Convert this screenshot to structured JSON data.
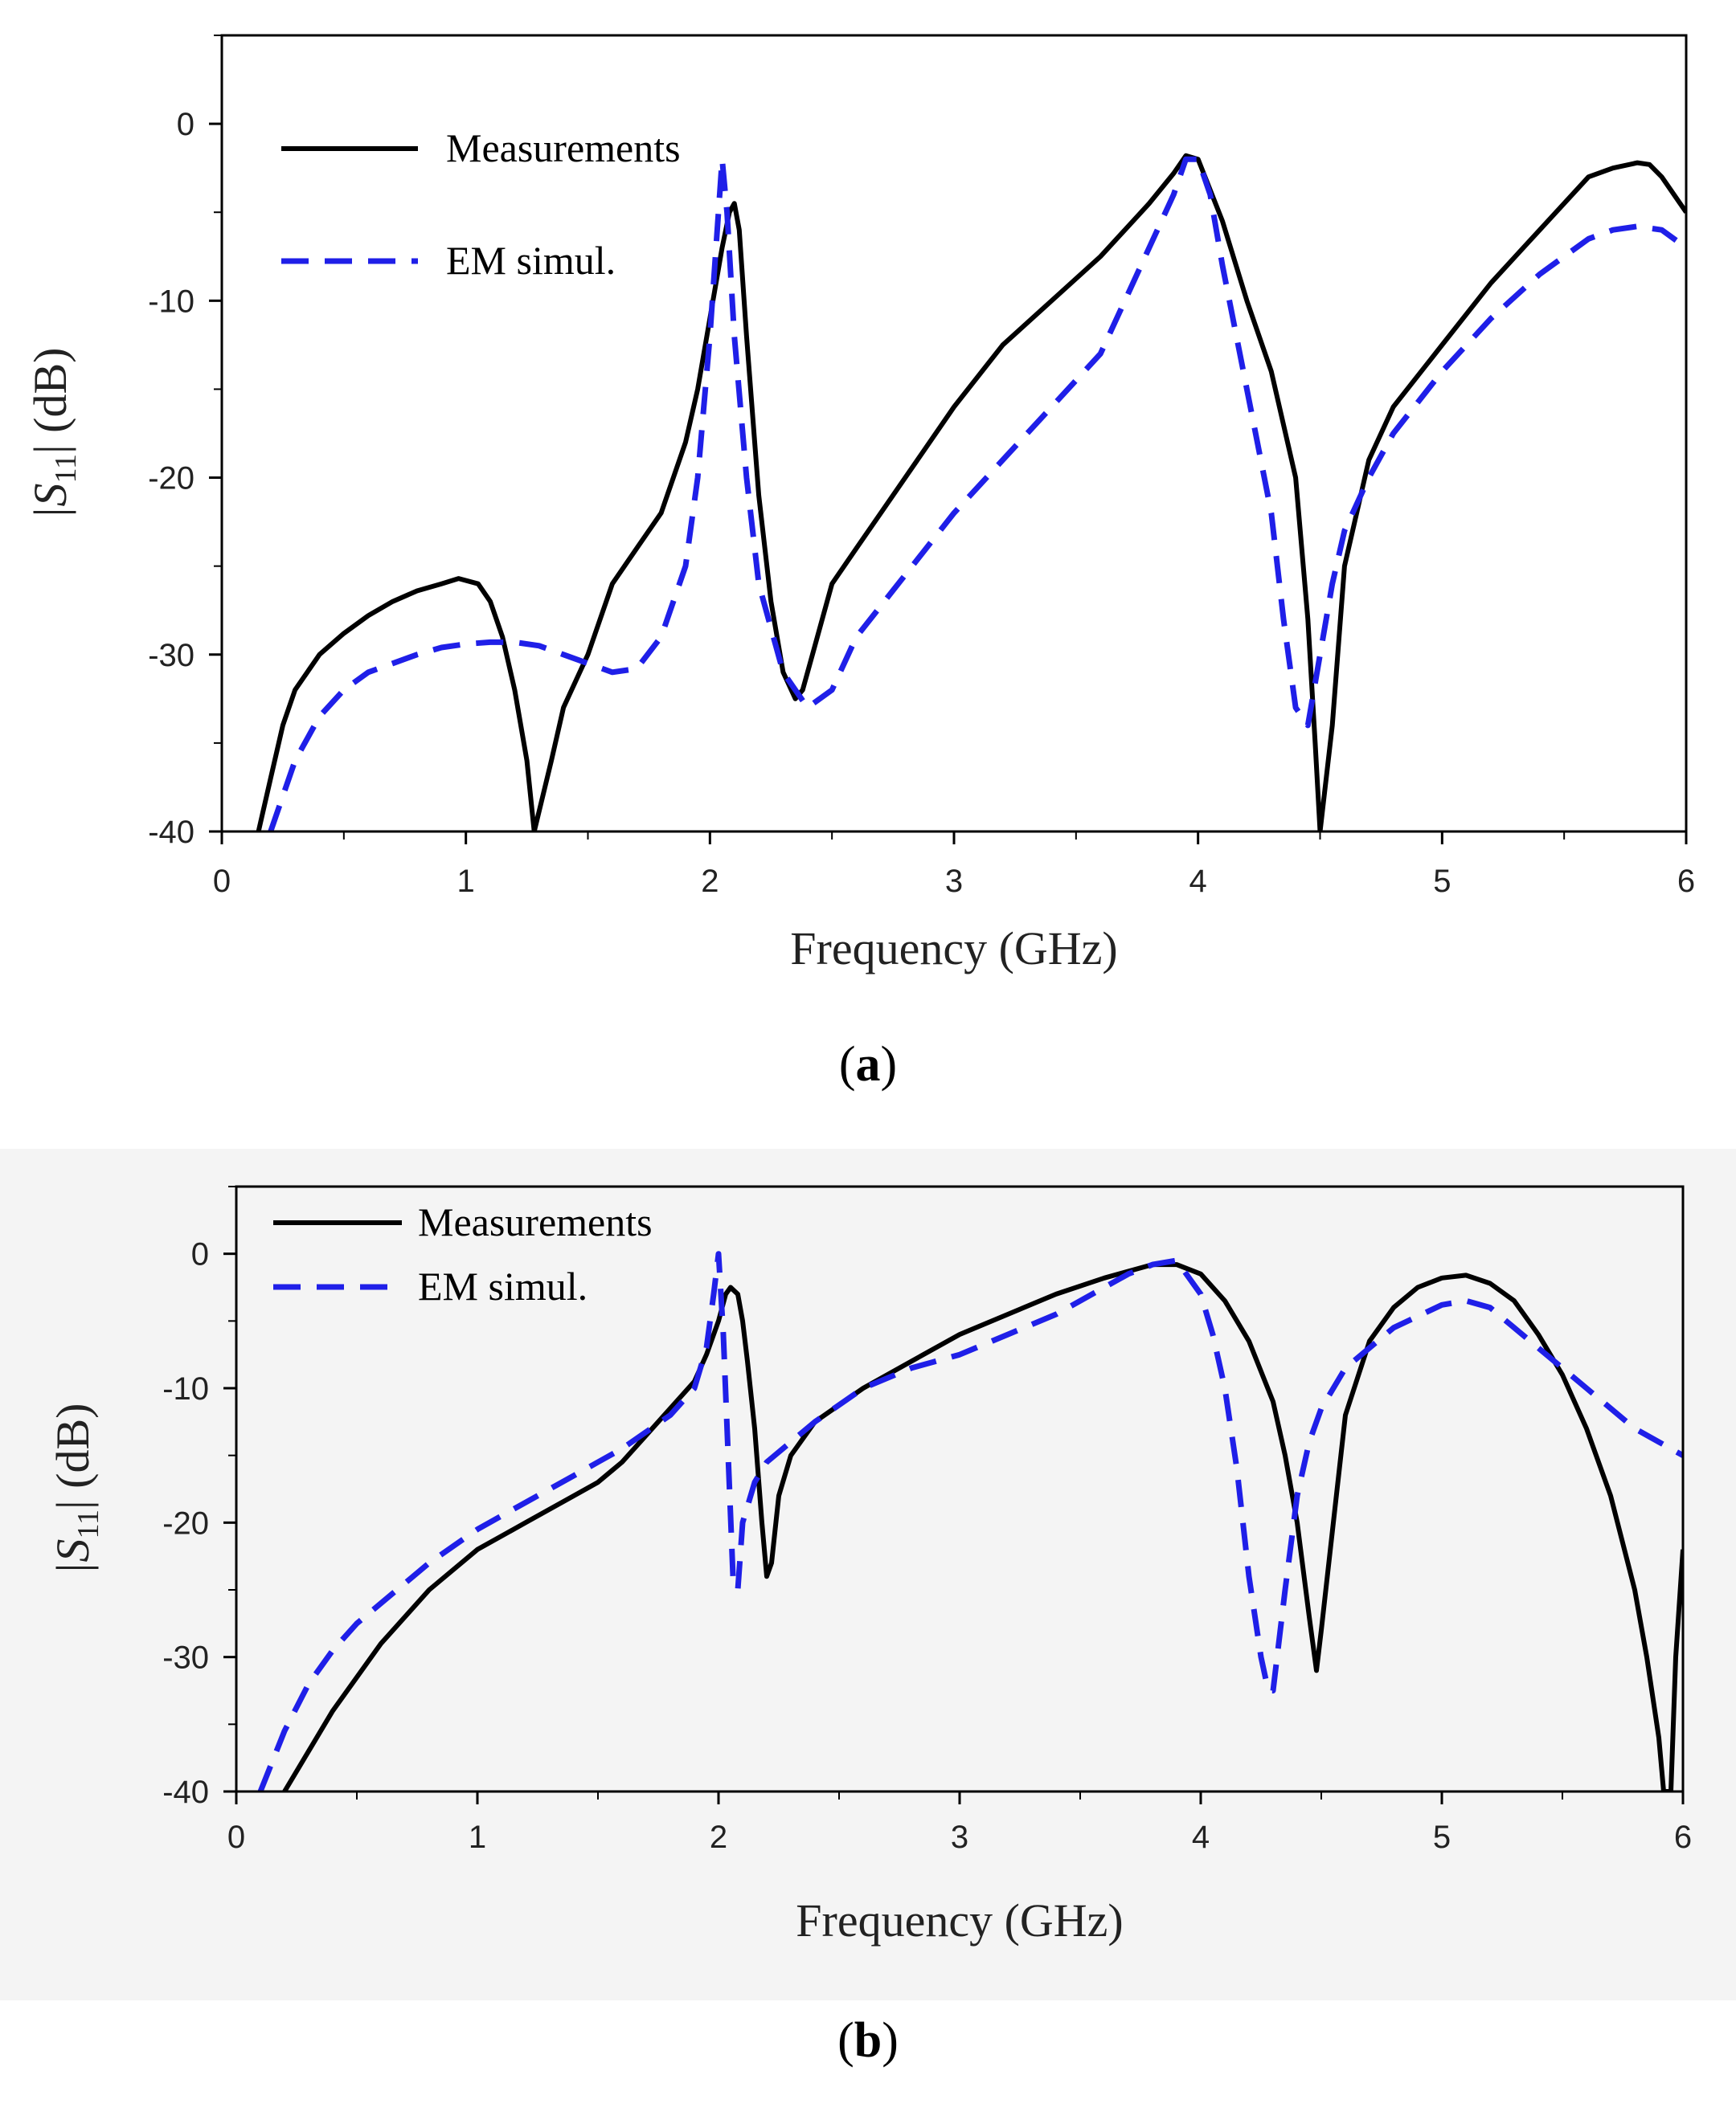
{
  "chart_data": [
    {
      "panel": "a",
      "type": "line",
      "caption_label": "a",
      "xlabel": "Frequency  (GHz)",
      "ylabel_main": "|S",
      "ylabel_sub": "11",
      "ylabel_end": "| (dB)",
      "xlim": [
        0,
        6
      ],
      "ylim": [
        -40,
        5
      ],
      "xticks": [
        0,
        1,
        2,
        3,
        4,
        5,
        6
      ],
      "xtick_labels": [
        "0",
        "1",
        "2",
        "3",
        "4",
        "5",
        "6"
      ],
      "yticks": [
        -40,
        -30,
        -20,
        -10,
        0
      ],
      "ytick_labels": [
        "-40",
        "-30",
        "-20",
        "-10",
        "0"
      ],
      "grid": false,
      "legend_position": "top-left",
      "series": [
        {
          "name": "Measurements",
          "color": "#000000",
          "dash": "solid",
          "x": [
            0.15,
            0.2,
            0.25,
            0.3,
            0.4,
            0.5,
            0.6,
            0.7,
            0.8,
            0.9,
            0.97,
            1.05,
            1.1,
            1.15,
            1.2,
            1.25,
            1.28,
            1.35,
            1.4,
            1.5,
            1.6,
            1.7,
            1.8,
            1.9,
            1.95,
            2.0,
            2.05,
            2.08,
            2.1,
            2.12,
            2.15,
            2.2,
            2.25,
            2.3,
            2.35,
            2.38,
            2.42,
            2.5,
            2.6,
            2.8,
            3.0,
            3.2,
            3.4,
            3.6,
            3.8,
            3.9,
            3.95,
            4.0,
            4.1,
            4.2,
            4.3,
            4.4,
            4.45,
            4.48,
            4.5,
            4.55,
            4.6,
            4.7,
            4.8,
            5.0,
            5.2,
            5.4,
            5.6,
            5.7,
            5.8,
            5.85,
            5.9,
            6.0
          ],
          "y": [
            -40,
            -37,
            -34,
            -32,
            -30,
            -28.8,
            -27.8,
            -27,
            -26.4,
            -26,
            -25.7,
            -26,
            -27,
            -29,
            -32,
            -36,
            -40,
            -36,
            -33,
            -30,
            -26,
            -24,
            -22,
            -18,
            -15,
            -11,
            -7,
            -5,
            -4.5,
            -6,
            -12,
            -21,
            -27,
            -31,
            -32.5,
            -32,
            -30,
            -26,
            -24,
            -20,
            -16,
            -12.5,
            -10,
            -7.5,
            -4.5,
            -2.8,
            -1.8,
            -2,
            -5.5,
            -10,
            -14,
            -20,
            -28,
            -35,
            -40,
            -34,
            -25,
            -19,
            -16,
            -12.5,
            -9,
            -6,
            -3,
            -2.5,
            -2.2,
            -2.3,
            -3,
            -5
          ]
        },
        {
          "name": "EM simul.",
          "color": "#1f1fe8",
          "dash": "dashed",
          "x": [
            0.2,
            0.3,
            0.4,
            0.5,
            0.6,
            0.7,
            0.8,
            0.9,
            1.0,
            1.1,
            1.2,
            1.3,
            1.4,
            1.5,
            1.6,
            1.7,
            1.8,
            1.9,
            1.95,
            2.0,
            2.03,
            2.05,
            2.07,
            2.1,
            2.15,
            2.2,
            2.3,
            2.4,
            2.45,
            2.5,
            2.6,
            2.8,
            3.0,
            3.2,
            3.4,
            3.6,
            3.7,
            3.8,
            3.9,
            3.95,
            4.0,
            4.05,
            4.1,
            4.2,
            4.3,
            4.35,
            4.4,
            4.45,
            4.5,
            4.55,
            4.6,
            4.7,
            4.8,
            5.0,
            5.2,
            5.4,
            5.6,
            5.7,
            5.8,
            5.9,
            6.0
          ],
          "y": [
            -40,
            -36,
            -33.5,
            -32,
            -31,
            -30.5,
            -30,
            -29.6,
            -29.4,
            -29.3,
            -29.3,
            -29.5,
            -30,
            -30.5,
            -31,
            -30.8,
            -29,
            -25,
            -20,
            -12,
            -6,
            -2,
            -5,
            -12,
            -20,
            -26,
            -31,
            -33,
            -32.5,
            -32,
            -29,
            -25.5,
            -22,
            -19,
            -16,
            -13,
            -10,
            -7,
            -4,
            -2,
            -2,
            -4,
            -8,
            -15,
            -22,
            -28,
            -33,
            -34,
            -30,
            -26,
            -23,
            -20,
            -17.5,
            -14,
            -11,
            -8.5,
            -6.5,
            -6,
            -5.8,
            -6,
            -7
          ]
        }
      ]
    },
    {
      "panel": "b",
      "type": "line",
      "caption_label": "b",
      "xlabel": "Frequency  (GHz)",
      "ylabel_main": "|S",
      "ylabel_sub": "11",
      "ylabel_end": "| (dB)",
      "xlim": [
        0,
        6
      ],
      "ylim": [
        -40,
        5
      ],
      "xticks": [
        0,
        1,
        2,
        3,
        4,
        5,
        6
      ],
      "xtick_labels": [
        "0",
        "1",
        "2",
        "3",
        "4",
        "5",
        "6"
      ],
      "yticks": [
        -40,
        -30,
        -20,
        -10,
        0
      ],
      "ytick_labels": [
        "-40",
        "-30",
        "-20",
        "-10",
        "0"
      ],
      "grid": false,
      "legend_position": "top-left",
      "series": [
        {
          "name": "Measurements",
          "color": "#000000",
          "dash": "solid",
          "x": [
            0.2,
            0.3,
            0.4,
            0.5,
            0.6,
            0.8,
            1.0,
            1.2,
            1.4,
            1.5,
            1.6,
            1.7,
            1.8,
            1.9,
            1.95,
            2.0,
            2.03,
            2.05,
            2.08,
            2.1,
            2.12,
            2.15,
            2.18,
            2.2,
            2.22,
            2.25,
            2.3,
            2.4,
            2.6,
            2.8,
            3.0,
            3.2,
            3.4,
            3.6,
            3.8,
            3.9,
            4.0,
            4.1,
            4.2,
            4.3,
            4.35,
            4.4,
            4.45,
            4.48,
            4.5,
            4.55,
            4.6,
            4.7,
            4.8,
            4.9,
            5.0,
            5.1,
            5.2,
            5.3,
            5.4,
            5.5,
            5.6,
            5.7,
            5.8,
            5.85,
            5.9,
            5.92,
            5.95,
            5.97,
            6.0
          ],
          "y": [
            -40,
            -37,
            -34,
            -31.5,
            -29,
            -25,
            -22,
            -20,
            -18,
            -17,
            -15.5,
            -13.5,
            -11.5,
            -9.5,
            -7.5,
            -5,
            -3,
            -2.5,
            -3,
            -5,
            -8,
            -13,
            -20,
            -24,
            -23,
            -18,
            -15,
            -12.5,
            -10,
            -8,
            -6,
            -4.5,
            -3,
            -1.8,
            -0.8,
            -0.8,
            -1.5,
            -3.5,
            -6.5,
            -11,
            -15,
            -20,
            -27,
            -31,
            -28,
            -20,
            -12,
            -6.5,
            -4,
            -2.5,
            -1.8,
            -1.6,
            -2.2,
            -3.5,
            -6,
            -9,
            -13,
            -18,
            -25,
            -30,
            -36,
            -40,
            -40,
            -30,
            -22
          ]
        },
        {
          "name": "EM simul.",
          "color": "#1f1fe8",
          "dash": "dashed",
          "x": [
            0.1,
            0.2,
            0.3,
            0.4,
            0.5,
            0.6,
            0.8,
            1.0,
            1.2,
            1.4,
            1.5,
            1.6,
            1.8,
            1.9,
            1.95,
            1.98,
            2.0,
            2.02,
            2.04,
            2.06,
            2.08,
            2.1,
            2.15,
            2.2,
            2.3,
            2.4,
            2.6,
            2.8,
            3.0,
            3.2,
            3.4,
            3.6,
            3.7,
            3.8,
            3.9,
            4.0,
            4.05,
            4.1,
            4.15,
            4.2,
            4.25,
            4.28,
            4.3,
            4.35,
            4.4,
            4.45,
            4.5,
            4.6,
            4.8,
            5.0,
            5.1,
            5.2,
            5.3,
            5.4,
            5.5,
            5.6,
            5.7,
            5.8,
            5.9,
            6.0
          ],
          "y": [
            -40,
            -35.5,
            -32,
            -29.5,
            -27.5,
            -26,
            -23,
            -20.5,
            -18.5,
            -16.5,
            -15.5,
            -14.5,
            -12,
            -10,
            -7,
            -3,
            0,
            -6,
            -15,
            -24,
            -25,
            -20,
            -17,
            -15.5,
            -14,
            -12.5,
            -10,
            -8.5,
            -7.5,
            -6,
            -4.5,
            -2.5,
            -1.5,
            -0.8,
            -0.5,
            -3,
            -6,
            -10,
            -16,
            -24,
            -30,
            -32.5,
            -32.5,
            -25,
            -18,
            -14,
            -11.5,
            -8.5,
            -5.5,
            -3.8,
            -3.5,
            -4,
            -5.5,
            -7,
            -8.5,
            -10,
            -11.5,
            -13,
            -14,
            -15
          ]
        }
      ]
    }
  ]
}
